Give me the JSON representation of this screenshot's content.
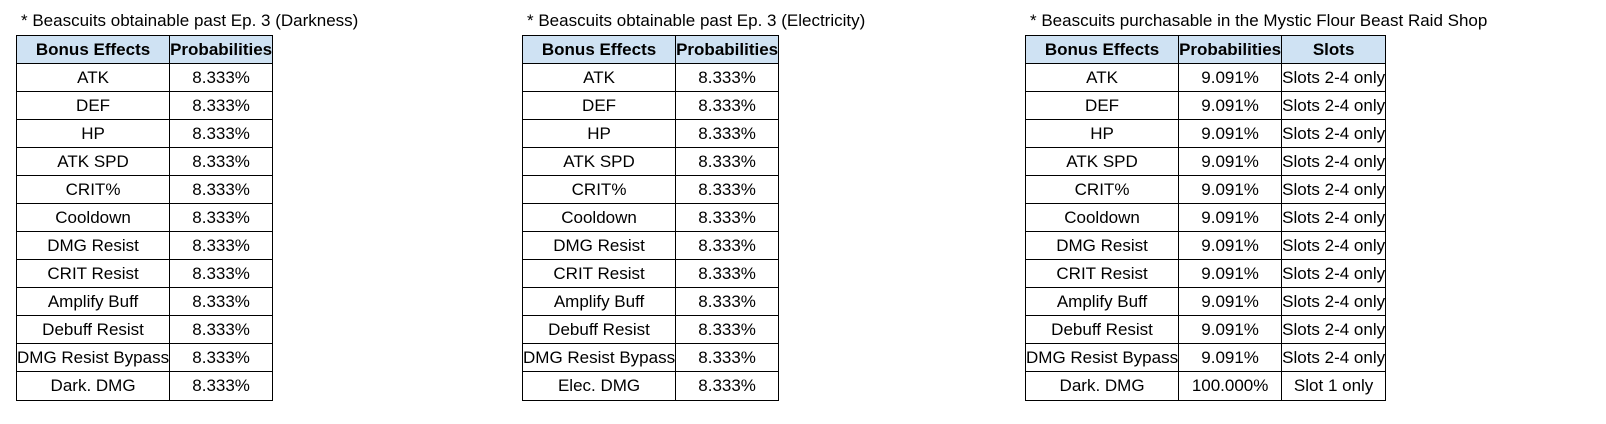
{
  "tables": [
    {
      "caption": "* Beascuits obtainable past Ep. 3 (Darkness)",
      "headers": [
        "Bonus Effects",
        "Probabilities"
      ],
      "rows": [
        [
          "ATK",
          "8.333%"
        ],
        [
          "DEF",
          "8.333%"
        ],
        [
          "HP",
          "8.333%"
        ],
        [
          "ATK SPD",
          "8.333%"
        ],
        [
          "CRIT%",
          "8.333%"
        ],
        [
          "Cooldown",
          "8.333%"
        ],
        [
          "DMG Resist",
          "8.333%"
        ],
        [
          "CRIT Resist",
          "8.333%"
        ],
        [
          "Amplify Buff",
          "8.333%"
        ],
        [
          "Debuff Resist",
          "8.333%"
        ],
        [
          "DMG Resist Bypass",
          "8.333%"
        ],
        [
          "Dark. DMG",
          "8.333%"
        ]
      ]
    },
    {
      "caption": "* Beascuits obtainable past Ep. 3 (Electricity)",
      "headers": [
        "Bonus Effects",
        "Probabilities"
      ],
      "rows": [
        [
          "ATK",
          "8.333%"
        ],
        [
          "DEF",
          "8.333%"
        ],
        [
          "HP",
          "8.333%"
        ],
        [
          "ATK SPD",
          "8.333%"
        ],
        [
          "CRIT%",
          "8.333%"
        ],
        [
          "Cooldown",
          "8.333%"
        ],
        [
          "DMG Resist",
          "8.333%"
        ],
        [
          "CRIT Resist",
          "8.333%"
        ],
        [
          "Amplify Buff",
          "8.333%"
        ],
        [
          "Debuff Resist",
          "8.333%"
        ],
        [
          "DMG Resist Bypass",
          "8.333%"
        ],
        [
          "Elec. DMG",
          "8.333%"
        ]
      ]
    },
    {
      "caption": "* Beascuits purchasable in the Mystic Flour Beast Raid Shop",
      "headers": [
        "Bonus Effects",
        "Probabilities",
        "Slots"
      ],
      "rows": [
        [
          "ATK",
          "9.091%",
          "Slots 2-4 only"
        ],
        [
          "DEF",
          "9.091%",
          "Slots 2-4 only"
        ],
        [
          "HP",
          "9.091%",
          "Slots 2-4 only"
        ],
        [
          "ATK SPD",
          "9.091%",
          "Slots 2-4 only"
        ],
        [
          "CRIT%",
          "9.091%",
          "Slots 2-4 only"
        ],
        [
          "Cooldown",
          "9.091%",
          "Slots 2-4 only"
        ],
        [
          "DMG Resist",
          "9.091%",
          "Slots 2-4 only"
        ],
        [
          "CRIT Resist",
          "9.091%",
          "Slots 2-4 only"
        ],
        [
          "Amplify Buff",
          "9.091%",
          "Slots 2-4 only"
        ],
        [
          "Debuff Resist",
          "9.091%",
          "Slots 2-4 only"
        ],
        [
          "DMG Resist Bypass",
          "9.091%",
          "Slots 2-4 only"
        ],
        [
          "Dark. DMG",
          "100.000%",
          "Slot 1 only"
        ]
      ]
    }
  ]
}
